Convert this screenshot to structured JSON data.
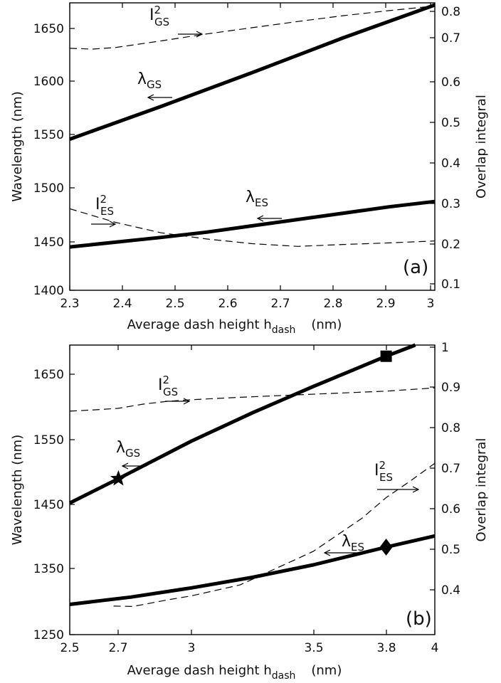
{
  "chart_data": [
    {
      "type": "line",
      "panel_label": "(a)",
      "xlabel": "Average dash height h",
      "xlabel_sub": "dash",
      "xlabel_unit": "(nm)",
      "ylabel": "Wavelength (nm)",
      "y2label": "Overlap integral",
      "xlim": [
        2.3,
        3.1
      ],
      "ylim": [
        1400,
        1672
      ],
      "y2lim": [
        0.08,
        0.82
      ],
      "xticks": [
        "2.3",
        "2.4",
        "2.5",
        "2.6",
        "2.7",
        "2.8",
        "2.9",
        "3"
      ],
      "yticks": [
        "1400",
        "1450",
        "1500",
        "1550",
        "1600",
        "1650"
      ],
      "y2ticks": [
        "0.1",
        "0.2",
        "0.3",
        "0.4",
        "0.5",
        "0.6",
        "0.7",
        "0.8"
      ],
      "grid": false,
      "series": [
        {
          "name": "λGS",
          "axis": "left",
          "style": "solid",
          "x": [
            2.3,
            2.5,
            2.7,
            2.9,
            3.1
          ],
          "y": [
            1543,
            1574,
            1606,
            1639,
            1670
          ]
        },
        {
          "name": "λES",
          "axis": "left",
          "style": "solid",
          "x": [
            2.3,
            2.5,
            2.6,
            2.7,
            2.8,
            2.9,
            3.0,
            3.1
          ],
          "y": [
            1441,
            1450,
            1455,
            1461,
            1467,
            1473,
            1479,
            1484
          ]
        },
        {
          "name": "I²GS",
          "axis": "right",
          "style": "dashed",
          "x": [
            2.3,
            2.35,
            2.4,
            2.5,
            2.6,
            2.7,
            2.8,
            2.9,
            3.0,
            3.1
          ],
          "y": [
            0.703,
            0.701,
            0.705,
            0.722,
            0.74,
            0.756,
            0.772,
            0.787,
            0.8,
            0.812
          ]
        },
        {
          "name": "I²ES",
          "axis": "right",
          "style": "dashed",
          "x": [
            2.3,
            2.4,
            2.5,
            2.6,
            2.7,
            2.8,
            2.9,
            3.0,
            3.1
          ],
          "y": [
            0.29,
            0.255,
            0.228,
            0.212,
            0.2,
            0.193,
            0.198,
            0.202,
            0.207
          ]
        }
      ],
      "annotations": [
        {
          "text": "I",
          "sup": "2",
          "sub": "GS"
        },
        {
          "text": "λ",
          "sub": "GS"
        },
        {
          "text": "I",
          "sup": "2",
          "sub": "ES"
        },
        {
          "text": "λ",
          "sub": "ES"
        }
      ]
    },
    {
      "type": "line",
      "panel_label": "(b)",
      "xlabel": "Average dash height h",
      "xlabel_sub": "dash",
      "xlabel_unit": "(nm)",
      "ylabel": "Wavelength (nm)",
      "y2label": "Overlap integral",
      "xlim": [
        2.5,
        4.0
      ],
      "ylim": [
        1250,
        1690
      ],
      "y2lim": [
        0.29,
        1.0
      ],
      "xticks": [
        "2.5",
        "2.7",
        "3",
        "3.5",
        "3.8",
        "4"
      ],
      "yticks": [
        "1250",
        "1350",
        "1450",
        "1550",
        "1650"
      ],
      "y2ticks": [
        "0.4",
        "0.5",
        "0.6",
        "0.7",
        "0.8",
        "0.9",
        "1"
      ],
      "grid": false,
      "series": [
        {
          "name": "λGS",
          "axis": "left",
          "style": "solid",
          "x": [
            2.5,
            2.7,
            3.0,
            3.25,
            3.5,
            3.8,
            3.92
          ],
          "y": [
            1450,
            1487,
            1544,
            1587,
            1627,
            1673,
            1690
          ]
        },
        {
          "name": "λES",
          "axis": "left",
          "style": "solid",
          "x": [
            2.5,
            2.75,
            3.0,
            3.25,
            3.5,
            3.8,
            4.0
          ],
          "y": [
            1296,
            1307,
            1321,
            1337,
            1356,
            1383,
            1400
          ]
        },
        {
          "name": "I²GS",
          "axis": "right",
          "style": "dashed",
          "x": [
            2.5,
            2.6,
            2.7,
            2.8,
            2.9,
            3.0,
            3.2,
            3.4,
            3.6,
            3.8,
            4.0
          ],
          "y": [
            0.838,
            0.841,
            0.845,
            0.855,
            0.862,
            0.866,
            0.872,
            0.877,
            0.882,
            0.887,
            0.895
          ]
        },
        {
          "name": "I²ES",
          "axis": "right",
          "style": "dashed",
          "x": [
            2.68,
            2.76,
            2.9,
            3.0,
            3.2,
            3.5,
            3.7,
            3.8,
            3.9,
            4.0
          ],
          "y": [
            0.36,
            0.359,
            0.375,
            0.385,
            0.412,
            0.494,
            0.575,
            0.626,
            0.667,
            0.71
          ]
        }
      ],
      "markers": [
        {
          "symbol": "star",
          "series": "λGS",
          "x": 2.7,
          "y": 1487
        },
        {
          "symbol": "square",
          "series": "λGS",
          "x": 3.8,
          "y": 1673
        },
        {
          "symbol": "diamond",
          "series": "λES",
          "x": 3.8,
          "y": 1383
        }
      ],
      "annotations": [
        {
          "text": "I",
          "sup": "2",
          "sub": "GS"
        },
        {
          "text": "λ",
          "sub": "GS"
        },
        {
          "text": "I",
          "sup": "2",
          "sub": "ES"
        },
        {
          "text": "λ",
          "sub": "ES"
        }
      ]
    }
  ]
}
